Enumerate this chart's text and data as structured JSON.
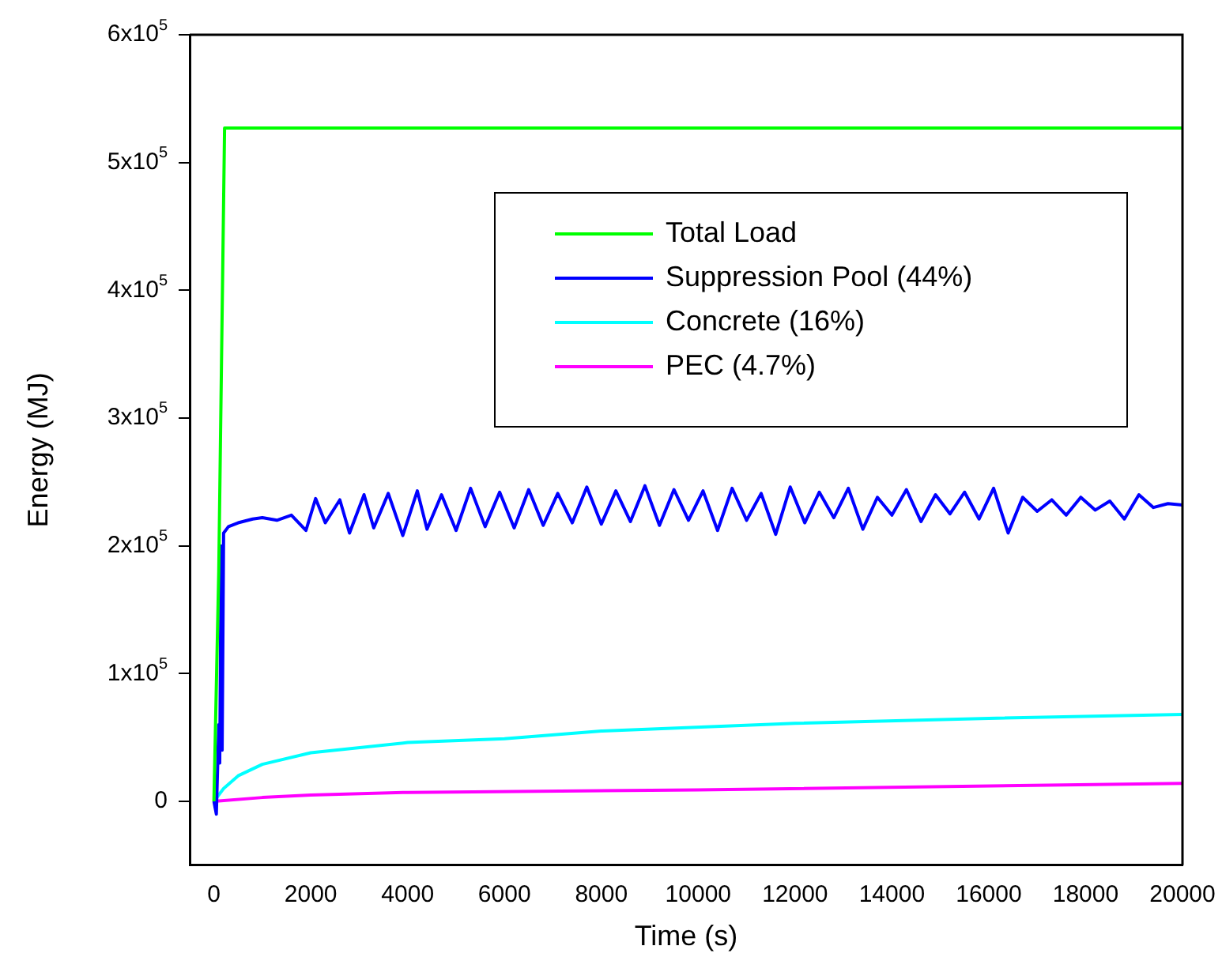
{
  "chart_data": {
    "type": "line",
    "xlabel": "Time (s)",
    "ylabel": "Energy (MJ)",
    "xlim": [
      -500,
      20000
    ],
    "xticks": [
      0,
      2000,
      4000,
      6000,
      8000,
      10000,
      12000,
      14000,
      16000,
      18000,
      20000
    ],
    "ylim": [
      -50000,
      600000
    ],
    "yticks": [
      0,
      {
        "value": 100000,
        "label": "1x10$^{5}$"
      },
      {
        "value": 200000,
        "label": "2x10$^{5}$"
      },
      {
        "value": 300000,
        "label": "3x10$^{5}$"
      },
      {
        "value": 400000,
        "label": "4x10$^{5}$"
      },
      {
        "value": 500000,
        "label": "5x10$^{5}$"
      },
      {
        "value": 600000,
        "label": "6x10$^{5}$"
      }
    ],
    "grid": false,
    "legend": "top right",
    "marker": "none",
    "line_style": "solid",
    "series": [
      {
        "name": "Total Load",
        "color": "#00ff00",
        "x": [
          0,
          100,
          220,
          20000
        ],
        "values": [
          0,
          180000,
          527000,
          527000
        ]
      },
      {
        "name": "Suppression Pool (44%)",
        "color": "#0000ff",
        "x": [
          0,
          50,
          100,
          120,
          150,
          170,
          200,
          300,
          500,
          800,
          1000,
          1300,
          1600,
          1900,
          2100,
          2300,
          2600,
          2800,
          3100,
          3300,
          3600,
          3900,
          4200,
          4400,
          4700,
          5000,
          5300,
          5600,
          5900,
          6200,
          6500,
          6800,
          7100,
          7400,
          7700,
          8000,
          8300,
          8600,
          8900,
          9200,
          9500,
          9800,
          10100,
          10400,
          10700,
          11000,
          11300,
          11600,
          11900,
          12200,
          12500,
          12800,
          13100,
          13400,
          13700,
          14000,
          14300,
          14600,
          14900,
          15200,
          15500,
          15800,
          16100,
          16400,
          16700,
          17000,
          17300,
          17600,
          17900,
          18200,
          18500,
          18800,
          19100,
          19400,
          19700,
          20000
        ],
        "values": [
          0,
          -10000,
          60000,
          30000,
          200000,
          40000,
          210000,
          215000,
          218000,
          221000,
          222000,
          220000,
          224000,
          212000,
          237000,
          218000,
          236000,
          210000,
          240000,
          214000,
          241000,
          208000,
          243000,
          213000,
          240000,
          212000,
          245000,
          215000,
          242000,
          214000,
          244000,
          216000,
          241000,
          218000,
          246000,
          217000,
          243000,
          219000,
          247000,
          216000,
          244000,
          220000,
          243000,
          212000,
          245000,
          220000,
          241000,
          209000,
          246000,
          218000,
          242000,
          222000,
          245000,
          213000,
          238000,
          224000,
          244000,
          219000,
          240000,
          225000,
          242000,
          221000,
          245000,
          210000,
          238000,
          227000,
          236000,
          224000,
          238000,
          228000,
          235000,
          221000,
          240000,
          230000,
          233000,
          232000
        ]
      },
      {
        "name": "Concrete (16%)",
        "color": "#00ffff",
        "x": [
          0,
          200,
          500,
          1000,
          2000,
          4000,
          6000,
          8000,
          12000,
          16000,
          20000
        ],
        "values": [
          0,
          10000,
          20000,
          29000,
          38000,
          46000,
          49000,
          55000,
          61000,
          65000,
          68000
        ]
      },
      {
        "name": "PEC (4.7%)",
        "color": "#ff00ff",
        "x": [
          0,
          1000,
          2000,
          4000,
          10000,
          20000
        ],
        "values": [
          0,
          3000,
          5000,
          7000,
          9000,
          14000
        ]
      }
    ]
  }
}
